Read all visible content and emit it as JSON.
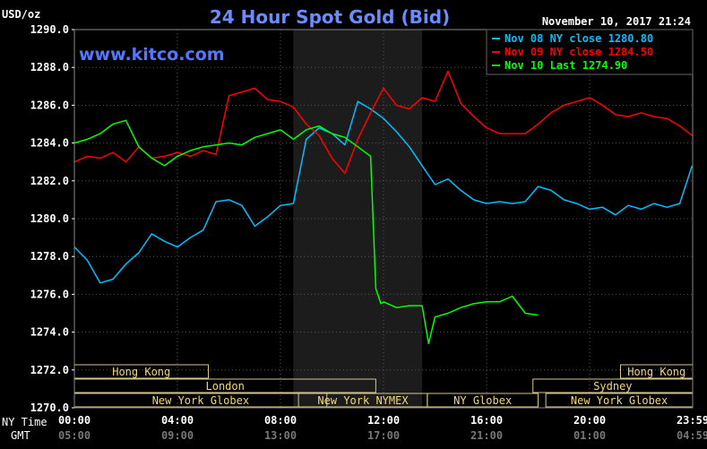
{
  "chart_data": {
    "type": "line",
    "title": "24 Hour Spot Gold (Bid)",
    "unit_label": "USD/oz",
    "watermark": "www.kitco.com",
    "datetime": "November 10, 2017 21:24",
    "ylim": [
      1270.0,
      1290.0
    ],
    "y_ticks": [
      "1290.0",
      "1288.0",
      "1286.0",
      "1284.0",
      "1282.0",
      "1280.0",
      "1278.0",
      "1276.0",
      "1274.0",
      "1272.0",
      "1270.0"
    ],
    "x_tick_labels_ny": [
      "00:00",
      "04:00",
      "08:00",
      "12:00",
      "16:00",
      "20:00",
      "23:59"
    ],
    "x_tick_labels_gmt": [
      "05:00",
      "09:00",
      "13:00",
      "17:00",
      "21:00",
      "01:00",
      "04:59"
    ],
    "row_labels": {
      "ny": "NY Time",
      "gmt": "GMT"
    },
    "shaded_hours": [
      8.5,
      13.5
    ],
    "grid": true,
    "legend_position": "top-right",
    "legend": [
      {
        "label": "Nov 08 NY close 1280.80",
        "color": "#00bfff"
      },
      {
        "label": "Nov 09 NY close 1284.50",
        "color": "#ff0000"
      },
      {
        "label": "Nov 10 Last 1274.90",
        "color": "#00ff00"
      }
    ],
    "series": [
      {
        "name": "Nov 08 NY close",
        "color": "#00bfff",
        "x": [
          0,
          0.5,
          1,
          1.5,
          2,
          2.5,
          3,
          3.5,
          4,
          4.5,
          5,
          5.5,
          6,
          6.5,
          7,
          7.5,
          8,
          8.5,
          9,
          9.5,
          10,
          10.5,
          11,
          11.5,
          12,
          12.5,
          13,
          13.5,
          14,
          14.5,
          15,
          15.5,
          16,
          16.5,
          17,
          17.5,
          18,
          18.5,
          19,
          19.5,
          20,
          20.5,
          21,
          21.5,
          22,
          22.5,
          23,
          23.5,
          23.98
        ],
        "values": [
          1278.5,
          1277.8,
          1276.6,
          1276.8,
          1277.6,
          1278.2,
          1279.2,
          1278.8,
          1278.5,
          1279.0,
          1279.4,
          1280.9,
          1281.0,
          1280.7,
          1279.6,
          1280.1,
          1280.7,
          1280.8,
          1284.2,
          1284.8,
          1284.5,
          1283.9,
          1286.2,
          1285.8,
          1285.3,
          1284.6,
          1283.8,
          1282.8,
          1281.8,
          1282.1,
          1281.5,
          1281.0,
          1280.8,
          1280.9,
          1280.8,
          1280.9,
          1281.7,
          1281.5,
          1281.0,
          1280.8,
          1280.5,
          1280.6,
          1280.2,
          1280.7,
          1280.5,
          1280.8,
          1280.6,
          1280.8,
          1282.8
        ]
      },
      {
        "name": "Nov 09 NY close",
        "color": "#ff0000",
        "x": [
          0,
          0.5,
          1,
          1.5,
          2,
          2.5,
          3,
          3.5,
          4,
          4.5,
          5,
          5.5,
          6,
          6.5,
          7,
          7.5,
          8,
          8.5,
          9,
          9.5,
          10,
          10.5,
          11,
          11.5,
          12,
          12.5,
          13,
          13.5,
          14,
          14.5,
          15,
          15.5,
          16,
          16.5,
          17,
          17.5,
          18,
          18.5,
          19,
          19.5,
          20,
          20.5,
          21,
          21.5,
          22,
          22.5,
          23,
          23.5,
          23.98
        ],
        "values": [
          1283.0,
          1283.3,
          1283.2,
          1283.5,
          1283.0,
          1283.8,
          1283.2,
          1283.3,
          1283.5,
          1283.3,
          1283.6,
          1283.4,
          1286.5,
          1286.7,
          1286.9,
          1286.3,
          1286.2,
          1285.9,
          1285.0,
          1284.4,
          1283.2,
          1282.4,
          1284.2,
          1285.6,
          1286.9,
          1286.0,
          1285.8,
          1286.4,
          1286.2,
          1287.8,
          1286.1,
          1285.4,
          1284.8,
          1284.5,
          1284.5,
          1284.5,
          1285.0,
          1285.6,
          1286.0,
          1286.2,
          1286.4,
          1286.0,
          1285.5,
          1285.4,
          1285.6,
          1285.4,
          1285.3,
          1284.9,
          1284.4
        ]
      },
      {
        "name": "Nov 10 Last",
        "color": "#00ff00",
        "x": [
          0,
          0.5,
          1,
          1.5,
          2,
          2.5,
          3,
          3.5,
          4,
          4.5,
          5,
          5.5,
          6,
          6.5,
          7,
          7.5,
          8,
          8.5,
          9,
          9.5,
          10,
          10.5,
          11,
          11.5,
          11.7,
          11.9,
          12,
          12.5,
          13,
          13.5,
          13.75,
          14,
          14.5,
          15,
          15.5,
          16,
          16.5,
          17,
          17.5,
          18
        ],
        "values": [
          1284.0,
          1284.2,
          1284.5,
          1285.0,
          1285.2,
          1283.8,
          1283.2,
          1282.8,
          1283.3,
          1283.6,
          1283.8,
          1283.9,
          1284.0,
          1283.9,
          1284.3,
          1284.5,
          1284.7,
          1284.2,
          1284.7,
          1284.9,
          1284.5,
          1284.3,
          1283.8,
          1283.3,
          1276.3,
          1275.5,
          1275.6,
          1275.3,
          1275.4,
          1275.4,
          1273.4,
          1274.8,
          1275.0,
          1275.3,
          1275.5,
          1275.6,
          1275.6,
          1275.9,
          1275.0,
          1274.9
        ]
      }
    ],
    "sessions": [
      {
        "row": 0,
        "label": "Hong Kong",
        "start": 0,
        "end": 5.2
      },
      {
        "row": 0,
        "label": "Hong Kong",
        "start": 21.2,
        "end": 24
      },
      {
        "row": 1,
        "label": "London",
        "start": 0,
        "end": 11.7
      },
      {
        "row": 1,
        "label": "Sydney",
        "start": 17.8,
        "end": 24
      },
      {
        "row": 2,
        "label": "New York Globex",
        "start": 0,
        "end": 9.8
      },
      {
        "row": 2,
        "label": "New York NYMEX",
        "start": 8.7,
        "end": 13.7
      },
      {
        "row": 2,
        "label": "NY Globex",
        "start": 13.7,
        "end": 18.0
      },
      {
        "row": 2,
        "label": "New York Globex",
        "start": 18.3,
        "end": 24
      }
    ]
  }
}
